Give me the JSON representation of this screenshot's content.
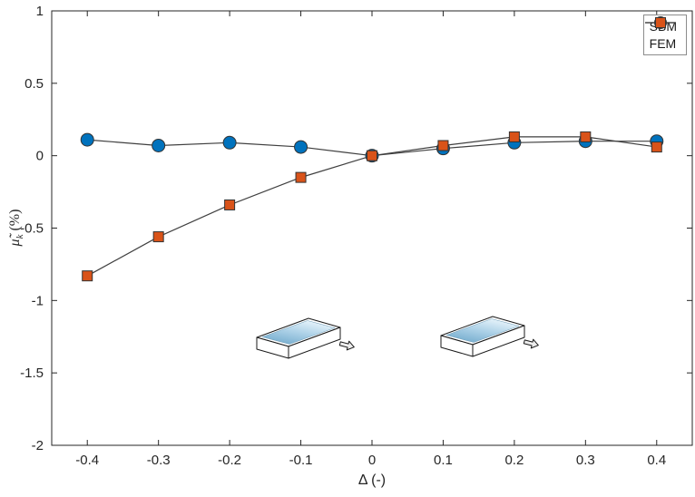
{
  "chart_data": {
    "type": "line",
    "x": [
      -0.4,
      -0.3,
      -0.2,
      -0.1,
      0,
      0.1,
      0.2,
      0.3,
      0.4
    ],
    "series": [
      {
        "name": "SBM",
        "marker": "circle",
        "color": "#0072BD",
        "values": [
          0.11,
          0.07,
          0.09,
          0.06,
          0.0,
          0.05,
          0.09,
          0.1,
          0.1
        ]
      },
      {
        "name": "FEM",
        "marker": "square",
        "color": "#D95319",
        "values": [
          -0.83,
          -0.56,
          -0.34,
          -0.15,
          0.0,
          0.07,
          0.13,
          0.13,
          0.06
        ]
      }
    ],
    "xlabel": "Δ (-)",
    "ylabel_mu": "μ̃",
    "ylabel_sub": "k",
    "ylabel_unit": " (%)",
    "xlim": [
      -0.45,
      0.45
    ],
    "ylim": [
      -2,
      1
    ],
    "xticks": [
      -0.4,
      -0.3,
      -0.2,
      -0.1,
      0,
      0.1,
      0.2,
      0.3,
      0.4
    ],
    "yticks": [
      1,
      0.5,
      0,
      -0.5,
      -1,
      -1.5,
      -2
    ],
    "grid": false,
    "line_color": "#3f3f3f",
    "marker_edge": "#333333",
    "axis_color": "#262626",
    "legend": {
      "position": "top-right",
      "entries": [
        "SBM",
        "FEM"
      ]
    }
  }
}
